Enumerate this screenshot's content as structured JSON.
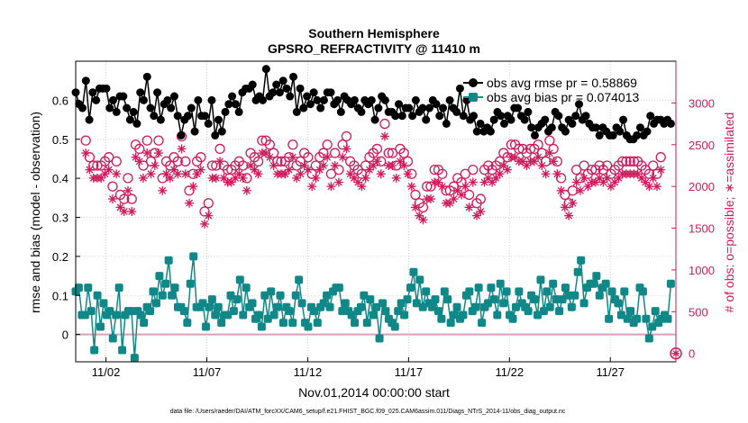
{
  "chart_data": {
    "type": "line",
    "title": [
      "Southern Hemisphere",
      "GPSRO_REFRACTIVITY @ 11410 m"
    ],
    "xlabel": "Nov.01,2014 00:00:00 start",
    "ylabel": "rmse and bias (model - observation)",
    "y2label": "# of obs: o=possible; ∗=assimilated",
    "footer": "data file: /Users/raeder/DAI/ATM_forcXX/CAM6_setup/f.e21.FHIST_BGC.f09_025.CAM6assim.011/Diags_NTrS_2014-11/obs_diag_output.nc",
    "xlim": [
      0.5,
      30.25
    ],
    "ylim": [
      -0.07,
      0.7
    ],
    "y2lim": [
      -100,
      3500
    ],
    "x_ticks": [
      2,
      7,
      12,
      17,
      22,
      27
    ],
    "x_tick_labels": [
      "11/02",
      "11/07",
      "11/12",
      "11/17",
      "11/22",
      "11/27"
    ],
    "y_ticks": [
      0,
      0.1,
      0.2,
      0.3,
      0.4,
      0.5,
      0.6
    ],
    "y_tick_labels": [
      "0",
      "0.1",
      "0.2",
      "0.3",
      "0.4",
      "0.5",
      "0.6"
    ],
    "y2_ticks": [
      0,
      500,
      1000,
      1500,
      2000,
      2500,
      3000
    ],
    "y2_tick_labels": [
      "0",
      "500",
      "1000",
      "1500",
      "2000",
      "2500",
      "3000"
    ],
    "grid": true,
    "legend_position": "top-right",
    "legend": [
      "obs avg rmse pr = 0.58869",
      "obs avg bias pr = 0.074013"
    ],
    "colors": {
      "rmse": "#000000",
      "bias": "#118888",
      "obs_count": "#d01a5c",
      "zero_line": "#d9a0b8"
    },
    "series": [
      {
        "name": "obs avg rmse pr = 0.58869",
        "axis": "left",
        "marker": "filled-circle",
        "values": [
          0.62,
          0.59,
          0.58,
          0.65,
          0.55,
          0.62,
          0.6,
          0.63,
          0.63,
          0.63,
          0.58,
          0.6,
          0.57,
          0.61,
          0.61,
          0.58,
          0.55,
          0.57,
          0.54,
          0.62,
          0.6,
          0.66,
          0.58,
          0.56,
          0.62,
          0.55,
          0.59,
          0.6,
          0.58,
          0.61,
          0.56,
          0.51,
          0.55,
          0.56,
          0.58,
          0.52,
          0.6,
          0.56,
          0.56,
          0.54,
          0.6,
          0.51,
          0.55,
          0.52,
          0.57,
          0.59,
          0.61,
          0.59,
          0.57,
          0.62,
          0.63,
          0.63,
          0.64,
          0.6,
          0.61,
          0.6,
          0.68,
          0.61,
          0.62,
          0.64,
          0.62,
          0.65,
          0.63,
          0.61,
          0.66,
          0.57,
          0.63,
          0.58,
          0.61,
          0.59,
          0.62,
          0.6,
          0.58,
          0.6,
          0.62,
          0.62,
          0.59,
          0.6,
          0.57,
          0.61,
          0.6,
          0.59,
          0.6,
          0.58,
          0.57,
          0.6,
          0.59,
          0.6,
          0.55,
          0.58,
          0.61,
          0.6,
          0.57,
          0.57,
          0.56,
          0.59,
          0.56,
          0.58,
          0.58,
          0.56,
          0.6,
          0.57,
          0.58,
          0.55,
          0.58,
          0.6,
          0.59,
          0.56,
          0.58,
          0.54,
          0.6,
          0.58,
          0.57,
          0.63,
          0.56,
          0.6,
          0.55,
          0.56,
          0.52,
          0.54,
          0.52,
          0.53,
          0.52,
          0.55,
          0.57,
          0.56,
          0.54,
          0.56,
          0.55,
          0.58,
          0.58,
          0.56,
          0.55,
          0.57,
          0.53,
          0.51,
          0.53,
          0.54,
          0.55,
          0.52,
          0.53,
          0.57,
          0.56,
          0.53,
          0.52,
          0.55,
          0.54,
          0.56,
          0.59,
          0.55,
          0.56,
          0.54,
          0.53,
          0.53,
          0.51,
          0.53,
          0.52,
          0.51,
          0.51,
          0.53,
          0.52,
          0.55,
          0.51,
          0.5,
          0.5,
          0.51,
          0.53,
          0.51,
          0.52,
          0.56,
          0.54,
          0.55,
          0.55,
          0.54,
          0.55,
          0.54
        ]
      },
      {
        "name": "obs avg bias pr = 0.074013",
        "axis": "left",
        "marker": "filled-square",
        "values": [
          0.11,
          0.12,
          0.05,
          0.05,
          0.12,
          0.06,
          -0.04,
          0.1,
          0.02,
          0.08,
          0.05,
          0.06,
          -0.01,
          0.05,
          0.12,
          -0.04,
          0.05,
          0.06,
          0.06,
          -0.06,
          0.06,
          0.05,
          0.03,
          0.07,
          0.06,
          0.11,
          0.08,
          0.15,
          0.1,
          0.13,
          0.19,
          0.1,
          0.12,
          0.07,
          0.07,
          0.06,
          0.03,
          0.13,
          0.2,
          0.07,
          0.07,
          0.08,
          0.02,
          0.07,
          0.09,
          0.05,
          0.07,
          0.03,
          0.05,
          0.05,
          0.1,
          0.06,
          0.09,
          0.14,
          0.05,
          0.12,
          0.07,
          0.08,
          0.04,
          0.05,
          0.02,
          0.1,
          0.04,
          0.11,
          0.05,
          0.07,
          0.1,
          0.03,
          0.07,
          0.06,
          0.03,
          0.1,
          0.14,
          0.08,
          0.03,
          0.02,
          0.07,
          0.06,
          0.03,
          0.07,
          0.08,
          0.1,
          0.07,
          0.11,
          0.12,
          0.12,
          0.06,
          0.08,
          0.06,
          0.05,
          0.03,
          0.06,
          0.07,
          0.1,
          0.03,
          0.09,
          0.05,
          0.07,
          -0.01,
          0.08,
          0.06,
          0.04,
          0.03,
          0.02,
          0.06,
          0.08,
          0.05,
          0.09,
          0.12,
          0.16,
          0.08,
          0.14,
          0.07,
          0.11,
          0.08,
          0.07,
          0.09,
          0.06,
          0.04,
          0.11,
          0.09,
          0.03,
          0.05,
          0.07,
          0.04,
          0.05,
          0.1,
          0.11,
          0.06,
          0.07,
          0.12,
          0.03,
          0.07,
          0.08,
          0.12,
          0.09,
          0.05,
          0.13,
          0.08,
          0.11,
          0.05,
          0.04,
          0.07,
          0.11,
          0.08,
          0.07,
          0.06,
          0.1,
          0.09,
          0.05,
          0.14,
          0.06,
          0.11,
          0.07,
          0.13,
          0.09,
          0.06,
          0.09,
          0.12,
          0.1,
          0.07,
          0.1,
          0.16,
          0.19,
          0.08,
          0.12,
          0.13,
          0.13,
          0.15,
          0.1,
          0.12,
          0.13,
          0.04,
          0.11,
          0.09,
          0.08,
          0.05,
          0.11,
          0.04,
          0.06,
          0.03,
          0.04,
          0.12,
          0.11,
          0.04,
          -0.01,
          0.02,
          0.06,
          0.03,
          0.04,
          0.05,
          0.04,
          0.13
        ]
      },
      {
        "name": "obs possible",
        "axis": "right",
        "marker": "open-circle",
        "values": [
          2550,
          2350,
          2250,
          2250,
          2250,
          2300,
          2350,
          2000,
          2300,
          1900,
          1850,
          2100,
          1850,
          2500,
          2450,
          2250,
          2550,
          2300,
          2400,
          2550,
          2100,
          2300,
          2250,
          2350,
          2300,
          2600,
          2300,
          1950,
          2150,
          2300,
          2350,
          1700,
          1800,
          2250,
          2250,
          2450,
          2250,
          2200,
          2200,
          2250,
          2300,
          2250,
          2100,
          2400,
          2350,
          2300,
          2550,
          2550,
          2500,
          2400,
          2300,
          2300,
          2300,
          2350,
          2500,
          2250,
          2300,
          2400,
          2350,
          2150,
          2250,
          2350,
          2400,
          2500,
          2150,
          2400,
          2200,
          2500,
          2600,
          2300,
          2250,
          2200,
          2150,
          2250,
          2350,
          2400,
          2450,
          2300,
          2750,
          2400,
          2400,
          2250,
          2450,
          2400,
          2300,
          2150,
          1900,
          1800,
          1750,
          2000,
          2000,
          2200,
          2200,
          2150,
          1950,
          1950,
          2000,
          2100,
          2050,
          2150,
          1900,
          2200,
          1800,
          1850,
          2200,
          2250,
          2200,
          2250,
          2300,
          2400,
          2350,
          2500,
          2500,
          2450,
          2450,
          2400,
          2450,
          2450,
          2500,
          2400,
          2300,
          2550,
          2450,
          2300,
          2100,
          1900,
          1800,
          1950,
          2200,
          2100,
          2250,
          2150,
          2200,
          2200,
          2250,
          2200,
          2250,
          2150,
          2200,
          2250,
          2300,
          2300,
          2300,
          2300,
          2300,
          2250,
          2200,
          2150,
          2250,
          2150,
          2350
        ],
        "x_start": 1.0
      },
      {
        "name": "obs assimilated",
        "axis": "right",
        "marker": "asterisk",
        "values": [
          2400,
          2200,
          2100,
          2100,
          2100,
          2150,
          2200,
          1850,
          2150,
          1750,
          1700,
          1950,
          1700,
          2350,
          2300,
          2100,
          2400,
          2150,
          2250,
          2400,
          1950,
          2150,
          2100,
          2200,
          2150,
          2450,
          2150,
          1800,
          2000,
          2150,
          2200,
          1550,
          1650,
          2100,
          2100,
          2300,
          2100,
          2050,
          2050,
          2100,
          2150,
          2100,
          1950,
          2250,
          2200,
          2150,
          2400,
          2400,
          2350,
          2250,
          2150,
          2150,
          2150,
          2200,
          2350,
          2100,
          2150,
          2250,
          2200,
          2000,
          2100,
          2200,
          2250,
          2350,
          2000,
          2250,
          2050,
          2350,
          2450,
          2150,
          2100,
          2050,
          2000,
          2100,
          2200,
          2250,
          2300,
          2150,
          2600,
          2250,
          2250,
          2100,
          2300,
          2250,
          2150,
          2000,
          1750,
          1650,
          1600,
          1850,
          1850,
          2050,
          2050,
          2000,
          1800,
          1800,
          1850,
          1950,
          1900,
          2000,
          1750,
          2050,
          1650,
          1700,
          2050,
          2100,
          2050,
          2100,
          2150,
          2250,
          2200,
          2350,
          2350,
          2300,
          2300,
          2250,
          2300,
          2300,
          2350,
          2250,
          2150,
          2400,
          2300,
          2150,
          1950,
          1750,
          1650,
          1800,
          2050,
          1950,
          2100,
          2000,
          2050,
          2050,
          2100,
          2050,
          2100,
          2000,
          2050,
          2100,
          2150,
          2150,
          2150,
          2150,
          2150,
          2100,
          2050,
          2000,
          2100,
          2000,
          2200
        ],
        "x_start": 1.0
      }
    ]
  }
}
